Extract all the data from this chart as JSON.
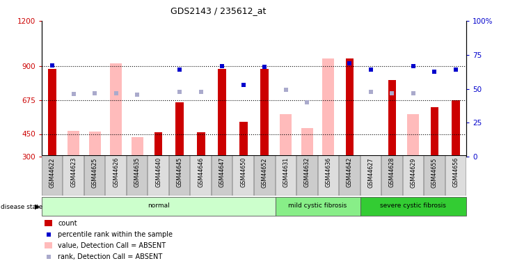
{
  "title": "GDS2143 / 235612_at",
  "samples": [
    "GSM44622",
    "GSM44623",
    "GSM44625",
    "GSM44626",
    "GSM44635",
    "GSM44640",
    "GSM44645",
    "GSM44646",
    "GSM44647",
    "GSM44650",
    "GSM44652",
    "GSM44631",
    "GSM44632",
    "GSM44636",
    "GSM44642",
    "GSM44627",
    "GSM44628",
    "GSM44629",
    "GSM44655",
    "GSM44656"
  ],
  "group_defs": [
    {
      "label": "normal",
      "start": 0,
      "end": 10,
      "color": "#ccffcc"
    },
    {
      "label": "mild cystic fibrosis",
      "start": 11,
      "end": 14,
      "color": "#88ee88"
    },
    {
      "label": "severe cystic fibrosis",
      "start": 15,
      "end": 19,
      "color": "#33cc33"
    }
  ],
  "count": [
    880,
    null,
    null,
    null,
    null,
    460,
    660,
    460,
    880,
    530,
    880,
    null,
    null,
    null,
    950,
    null,
    810,
    null,
    630,
    675
  ],
  "value_absent": [
    null,
    470,
    465,
    920,
    430,
    null,
    null,
    null,
    null,
    null,
    null,
    580,
    490,
    950,
    null,
    null,
    null,
    580,
    null,
    null
  ],
  "pct_rank_left": [
    905,
    null,
    null,
    null,
    null,
    null,
    875,
    null,
    900,
    775,
    895,
    null,
    null,
    null,
    920,
    875,
    null,
    900,
    865,
    875
  ],
  "rank_absent_left": [
    null,
    715,
    720,
    720,
    710,
    null,
    730,
    730,
    null,
    null,
    null,
    745,
    660,
    null,
    null,
    730,
    720,
    720,
    null,
    null
  ],
  "ylim": [
    300,
    1200
  ],
  "yticks_left": [
    300,
    450,
    675,
    900,
    1200
  ],
  "yticks_right": [
    0,
    25,
    50,
    75,
    100
  ],
  "hlines": [
    450,
    675,
    900
  ],
  "bar_color_count": "#cc0000",
  "bar_color_absent": "#ffbbbb",
  "dot_color_rank": "#0000cc",
  "dot_color_rank_absent": "#aaaacc",
  "legend_entries": [
    {
      "color": "#cc0000",
      "type": "bar",
      "label": "count"
    },
    {
      "color": "#0000cc",
      "type": "dot",
      "label": "percentile rank within the sample"
    },
    {
      "color": "#ffbbbb",
      "type": "bar",
      "label": "value, Detection Call = ABSENT"
    },
    {
      "color": "#aaaacc",
      "type": "dot",
      "label": "rank, Detection Call = ABSENT"
    }
  ]
}
